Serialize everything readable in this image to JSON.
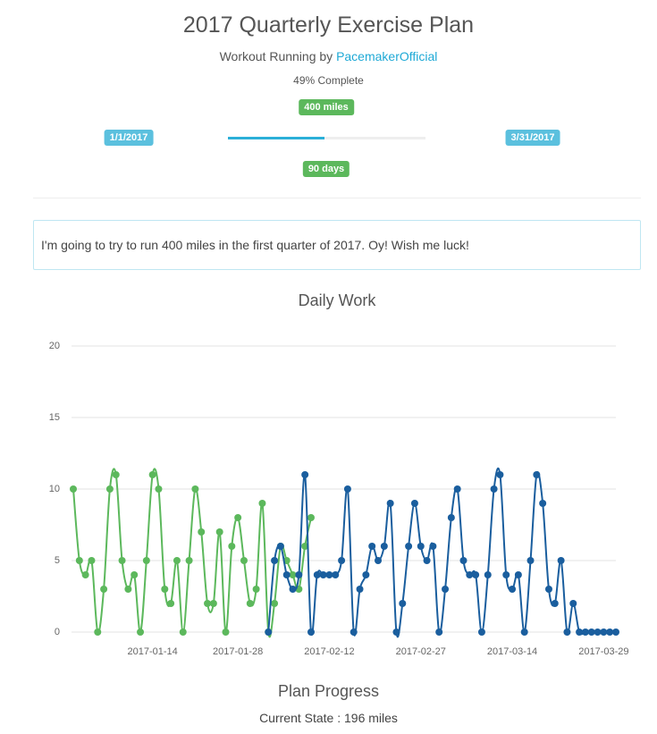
{
  "header": {
    "title": "2017 Quarterly Exercise Plan",
    "subtitle_prefix": "Workout Running by",
    "author": "PacemakerOfficial",
    "progress": {
      "value": 49,
      "label": "49% Complete"
    },
    "goal_badge": "400 miles",
    "start_date": "1/1/2017",
    "end_date": "3/31/2017",
    "duration_badge": "90 days"
  },
  "description": "I'm going to try to run 400 miles in the first quarter of 2017. Oy! Wish me luck!",
  "chart_data": {
    "type": "line",
    "title": "Daily Work",
    "x": [
      "2017-01-01",
      "2017-01-02",
      "2017-01-03",
      "2017-01-04",
      "2017-01-05",
      "2017-01-06",
      "2017-01-07",
      "2017-01-08",
      "2017-01-09",
      "2017-01-10",
      "2017-01-11",
      "2017-01-12",
      "2017-01-13",
      "2017-01-14",
      "2017-01-15",
      "2017-01-16",
      "2017-01-17",
      "2017-01-18",
      "2017-01-19",
      "2017-01-20",
      "2017-01-21",
      "2017-01-22",
      "2017-01-23",
      "2017-01-24",
      "2017-01-25",
      "2017-01-26",
      "2017-01-27",
      "2017-01-28",
      "2017-01-29",
      "2017-01-30",
      "2017-01-31",
      "2017-02-01",
      "2017-02-02",
      "2017-02-03",
      "2017-02-04",
      "2017-02-05",
      "2017-02-06",
      "2017-02-07",
      "2017-02-08",
      "2017-02-09",
      "2017-02-10",
      "2017-02-11",
      "2017-02-12",
      "2017-02-13",
      "2017-02-14",
      "2017-02-15",
      "2017-02-16",
      "2017-02-17",
      "2017-02-18",
      "2017-02-19",
      "2017-02-20",
      "2017-02-21",
      "2017-02-22",
      "2017-02-23",
      "2017-02-24",
      "2017-02-25",
      "2017-02-26",
      "2017-02-27",
      "2017-02-28",
      "2017-03-01",
      "2017-03-02",
      "2017-03-03",
      "2017-03-04",
      "2017-03-05",
      "2017-03-06",
      "2017-03-07",
      "2017-03-08",
      "2017-03-09",
      "2017-03-10",
      "2017-03-11",
      "2017-03-12",
      "2017-03-13",
      "2017-03-14",
      "2017-03-15",
      "2017-03-16",
      "2017-03-17",
      "2017-03-18",
      "2017-03-19",
      "2017-03-20",
      "2017-03-21",
      "2017-03-22",
      "2017-03-23",
      "2017-03-24",
      "2017-03-25",
      "2017-03-26",
      "2017-03-27",
      "2017-03-28",
      "2017-03-29",
      "2017-03-30",
      "2017-03-31"
    ],
    "series": [
      {
        "color": "#5cb85c",
        "values": [
          10,
          5,
          4,
          5,
          0,
          3,
          10,
          11,
          5,
          3,
          4,
          0,
          5,
          11,
          10,
          3,
          2,
          5,
          0,
          5,
          10,
          7,
          2,
          2,
          7,
          0,
          6,
          8,
          5,
          2,
          3,
          9,
          0,
          2,
          6,
          5,
          4,
          3,
          6,
          8,
          null,
          null,
          null,
          null,
          null,
          null,
          null,
          null,
          null,
          null,
          null,
          null,
          null,
          null,
          null,
          null,
          null,
          null,
          null,
          null,
          null,
          null,
          null,
          null,
          null,
          null,
          null,
          null,
          null,
          null,
          null,
          null,
          null,
          null,
          null,
          null,
          null,
          null,
          null,
          null,
          null,
          null,
          null,
          null,
          null,
          null,
          null,
          null,
          null,
          null
        ]
      },
      {
        "color": "#1a5e9e",
        "values": [
          null,
          null,
          null,
          null,
          null,
          null,
          null,
          null,
          null,
          null,
          null,
          null,
          null,
          null,
          null,
          null,
          null,
          null,
          null,
          null,
          null,
          null,
          null,
          null,
          null,
          null,
          null,
          null,
          null,
          null,
          null,
          null,
          0,
          5,
          6,
          4,
          3,
          4,
          11,
          0,
          4,
          4,
          4,
          4,
          5,
          10,
          0,
          3,
          4,
          6,
          5,
          6,
          9,
          0,
          2,
          6,
          9,
          6,
          5,
          6,
          0,
          3,
          8,
          10,
          5,
          4,
          4,
          0,
          4,
          10,
          11,
          4,
          3,
          4,
          0,
          5,
          11,
          9,
          3,
          2,
          5,
          0,
          2,
          0,
          0,
          0,
          0,
          0,
          0,
          0
        ]
      }
    ],
    "xlim": [
      "2017-01-01",
      "2017-03-31"
    ],
    "xticks": [
      "2017-01-14",
      "2017-01-28",
      "2017-02-12",
      "2017-02-27",
      "2017-03-14",
      "2017-03-29"
    ],
    "ylim": [
      0,
      20
    ],
    "yticks": [
      0,
      5,
      10,
      15,
      20
    ],
    "grid": true
  },
  "footer": {
    "title": "Plan Progress",
    "status": "Current State : 196 miles"
  }
}
